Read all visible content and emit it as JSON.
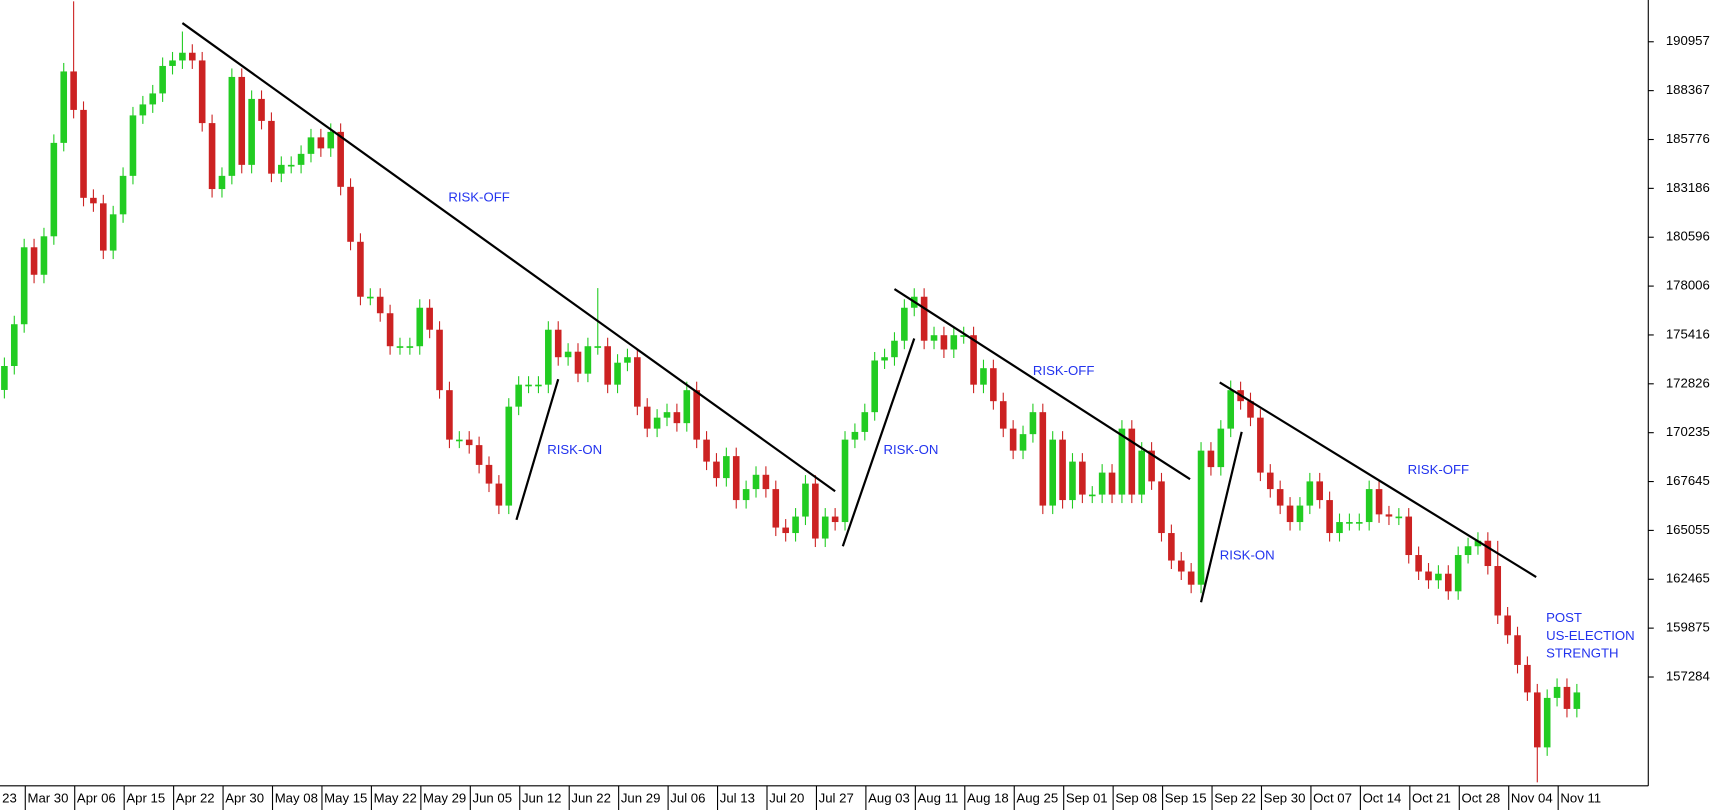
{
  "chart_data": {
    "type": "candlestick",
    "categories": [
      "23",
      null,
      null,
      "Mar 30",
      null,
      null,
      null,
      null,
      "Apr 06",
      null,
      null,
      null,
      null,
      "Apr 15",
      null,
      null,
      null,
      null,
      "Apr 22",
      null,
      null,
      null,
      null,
      "Apr 30",
      null,
      null,
      null,
      null,
      "May 08",
      null,
      null,
      null,
      null,
      "May 15",
      null,
      null,
      null,
      null,
      "May 22",
      null,
      null,
      null,
      null,
      "May 29",
      null,
      null,
      null,
      null,
      "Jun 05",
      null,
      null,
      null,
      null,
      "Jun 12",
      null,
      null,
      null,
      null,
      "Jun 22",
      null,
      null,
      null,
      null,
      "Jun 29",
      null,
      null,
      null,
      null,
      "Jul 06",
      null,
      null,
      null,
      null,
      "Jul 13",
      null,
      null,
      null,
      null,
      "Jul 20",
      null,
      null,
      null,
      null,
      "Jul 27",
      null,
      null,
      null,
      null,
      "Aug 03",
      null,
      null,
      null,
      null,
      "Aug 11",
      null,
      null,
      null,
      null,
      "Aug 18",
      null,
      null,
      null,
      null,
      "Aug 25",
      null,
      null,
      null,
      null,
      "Sep 01",
      null,
      null,
      null,
      null,
      "Sep 08",
      null,
      null,
      null,
      null,
      "Sep 15",
      null,
      null,
      null,
      null,
      "Sep 22",
      null,
      null,
      null,
      null,
      "Sep 30",
      null,
      null,
      null,
      null,
      "Oct 07",
      null,
      null,
      null,
      null,
      "Oct 14",
      null,
      null,
      null,
      null,
      "Oct 21",
      null,
      null,
      null,
      null,
      "Oct 28",
      null,
      null,
      null,
      null,
      "Nov 04",
      null,
      null,
      null,
      null,
      "Nov 11",
      null
    ],
    "open": [
      172500,
      173770,
      175984,
      180063,
      178606,
      180645,
      185597,
      189384,
      187345,
      182684,
      182393,
      179888,
      181810,
      183849,
      187054,
      187636,
      188219,
      189675,
      189967,
      190375,
      189967,
      186646,
      183150,
      183849,
      189093,
      184432,
      187928,
      186762,
      183966,
      184432,
      184432,
      185015,
      185889,
      185306,
      186180,
      183267,
      180354,
      177441,
      177441,
      176567,
      174819,
      174819,
      174819,
      176858,
      175693,
      172489,
      169867,
      169867,
      169576,
      168527,
      167537,
      166371,
      171615,
      172780,
      172780,
      172780,
      175693,
      174236,
      174528,
      173363,
      174819,
      174819,
      172780,
      173945,
      174236,
      171615,
      170450,
      171032,
      171323,
      170741,
      172489,
      169867,
      168702,
      167828,
      168993,
      166663,
      167245,
      168003,
      167245,
      165206,
      164915,
      165789,
      167537,
      164624,
      165789,
      165498,
      169867,
      170275,
      171323,
      174062,
      174236,
      175110,
      176858,
      177441,
      175110,
      175402,
      174644,
      175402,
      175402,
      172780,
      173654,
      171906,
      170450,
      169284,
      170158,
      171323,
      166371,
      169867,
      166663,
      168702,
      166954,
      166954,
      168119,
      166954,
      170450,
      166954,
      169284,
      167653,
      164915,
      163458,
      162876,
      162177,
      169284,
      168411,
      170450,
      172489,
      171906,
      171032,
      168119,
      167245,
      166371,
      165498,
      166371,
      167653,
      166663,
      164915,
      165498,
      165498,
      165498,
      167245,
      165905,
      165789,
      165789,
      163750,
      162876,
      162410,
      162759,
      161827,
      163750,
      164216,
      164507,
      163167,
      160545,
      159497,
      157924,
      156467,
      153554,
      156176,
      156759,
      155593
    ],
    "high": [
      174220,
      176434,
      180513,
      180513,
      181095,
      186047,
      189834,
      193100,
      187795,
      183134,
      182843,
      182260,
      184299,
      187504,
      188086,
      188669,
      190125,
      190417,
      191500,
      190825,
      190417,
      187096,
      184299,
      189543,
      189543,
      188378,
      188378,
      187212,
      184882,
      184882,
      185465,
      186339,
      186339,
      186630,
      186630,
      183717,
      180804,
      177891,
      177891,
      177017,
      175269,
      175269,
      177308,
      177308,
      176143,
      172939,
      170317,
      170317,
      170026,
      168977,
      167987,
      172065,
      173230,
      173230,
      173230,
      176143,
      176143,
      174978,
      174978,
      175269,
      177900,
      175269,
      174395,
      174686,
      174686,
      172065,
      171482,
      171773,
      171773,
      172939,
      172939,
      170317,
      169152,
      169443,
      169443,
      167695,
      168453,
      168453,
      167695,
      165656,
      166239,
      167987,
      167987,
      166239,
      166239,
      170317,
      170725,
      171773,
      174512,
      174686,
      175560,
      177308,
      177891,
      177891,
      175852,
      175852,
      175852,
      175852,
      175852,
      174104,
      174104,
      172356,
      170900,
      170608,
      171773,
      171773,
      170317,
      170317,
      169152,
      169152,
      167404,
      168569,
      168569,
      170900,
      170900,
      169734,
      169734,
      168103,
      165365,
      163908,
      163326,
      169734,
      169734,
      170900,
      173000,
      172939,
      172356,
      171482,
      168569,
      167695,
      166821,
      166821,
      168103,
      168103,
      167113,
      165948,
      165948,
      165948,
      167695,
      167695,
      166355,
      166239,
      166239,
      164200,
      163326,
      163209,
      163209,
      164200,
      164666,
      164957,
      164957,
      164500,
      160995,
      159947,
      158374,
      156917,
      156626,
      157209,
      157209,
      156917
    ],
    "low": [
      172050,
      173320,
      175534,
      178156,
      178156,
      180195,
      185147,
      186895,
      182234,
      181943,
      179438,
      179438,
      181360,
      183399,
      186604,
      187186,
      187769,
      189225,
      189517,
      189517,
      186196,
      182700,
      182700,
      183399,
      183982,
      183982,
      186312,
      183516,
      183516,
      183982,
      183982,
      184565,
      184856,
      184856,
      182817,
      179904,
      176991,
      176991,
      176117,
      174369,
      174369,
      174369,
      174369,
      175243,
      172039,
      169417,
      169417,
      169126,
      168077,
      167087,
      165921,
      165921,
      171165,
      172330,
      172330,
      172330,
      173786,
      173786,
      172913,
      172913,
      174369,
      172330,
      172330,
      173495,
      171165,
      170000,
      170000,
      170582,
      170291,
      170291,
      169417,
      168252,
      167378,
      167378,
      166213,
      166213,
      166795,
      166795,
      164756,
      164465,
      164465,
      165339,
      164174,
      164174,
      165048,
      165048,
      169417,
      169825,
      170873,
      173612,
      173786,
      174660,
      176408,
      174660,
      174660,
      174194,
      174194,
      174952,
      172330,
      172330,
      171456,
      170000,
      168834,
      168834,
      169708,
      165921,
      165921,
      166213,
      166213,
      166504,
      166504,
      166504,
      166504,
      166504,
      166504,
      166504,
      167203,
      164465,
      163008,
      162426,
      161727,
      161727,
      167961,
      167961,
      170000,
      171456,
      170582,
      167669,
      166795,
      165921,
      165048,
      165048,
      165921,
      166213,
      164465,
      164465,
      165048,
      165048,
      165048,
      165455,
      165339,
      165339,
      163300,
      162426,
      161960,
      161960,
      161377,
      161377,
      163300,
      163766,
      162717,
      160095,
      159047,
      157474,
      156017,
      151700,
      153104,
      155726,
      155143,
      155143
    ],
    "close": [
      173770,
      175984,
      180063,
      178606,
      180645,
      185597,
      189384,
      187345,
      182684,
      182393,
      179888,
      181810,
      183849,
      187054,
      187636,
      188219,
      189675,
      189967,
      190375,
      189967,
      186646,
      183150,
      183849,
      189093,
      184432,
      187928,
      186762,
      183966,
      184432,
      184432,
      185015,
      185889,
      185306,
      186180,
      183267,
      180354,
      177441,
      177441,
      176567,
      174819,
      174819,
      174819,
      176858,
      175693,
      172489,
      169867,
      169867,
      169576,
      168527,
      167537,
      166371,
      171615,
      172780,
      172780,
      172780,
      175693,
      174236,
      174528,
      173363,
      174819,
      174819,
      172780,
      173945,
      174236,
      171615,
      170450,
      171032,
      171323,
      170741,
      172489,
      169867,
      168702,
      167828,
      168993,
      166663,
      167245,
      168003,
      167245,
      165206,
      164915,
      165789,
      167537,
      164624,
      165789,
      165498,
      169867,
      170275,
      171323,
      174062,
      174236,
      175110,
      176858,
      177441,
      175110,
      175402,
      174644,
      175402,
      175402,
      172780,
      173654,
      171906,
      170450,
      169284,
      170158,
      171323,
      166371,
      169867,
      166663,
      168702,
      166954,
      166954,
      168119,
      166954,
      170450,
      166954,
      169284,
      167653,
      164915,
      163458,
      162876,
      162177,
      169284,
      168411,
      170450,
      172489,
      171906,
      171032,
      168119,
      167245,
      166371,
      165498,
      166371,
      167653,
      166663,
      164915,
      165498,
      165498,
      165498,
      167245,
      165905,
      165789,
      165789,
      163750,
      162876,
      162410,
      162759,
      161827,
      163750,
      164216,
      164507,
      163167,
      160545,
      159497,
      157924,
      156467,
      153554,
      156176,
      156759,
      155593,
      156467
    ],
    "ylim": [
      151516,
      193171
    ],
    "yticks": [
      190957,
      188367,
      185776,
      183186,
      180596,
      178006,
      175416,
      172826,
      170235,
      167645,
      165055,
      162465,
      159875,
      157284
    ],
    "up_color": "#22cc22",
    "down_color": "#cc2222",
    "annotations": [
      "RISK-OFF",
      "RISK-ON",
      "RISK-ON",
      "RISK-OFF",
      "RISK-ON",
      "RISK-OFF",
      "POST",
      "US-ELECTION",
      "STRENGTH"
    ]
  }
}
